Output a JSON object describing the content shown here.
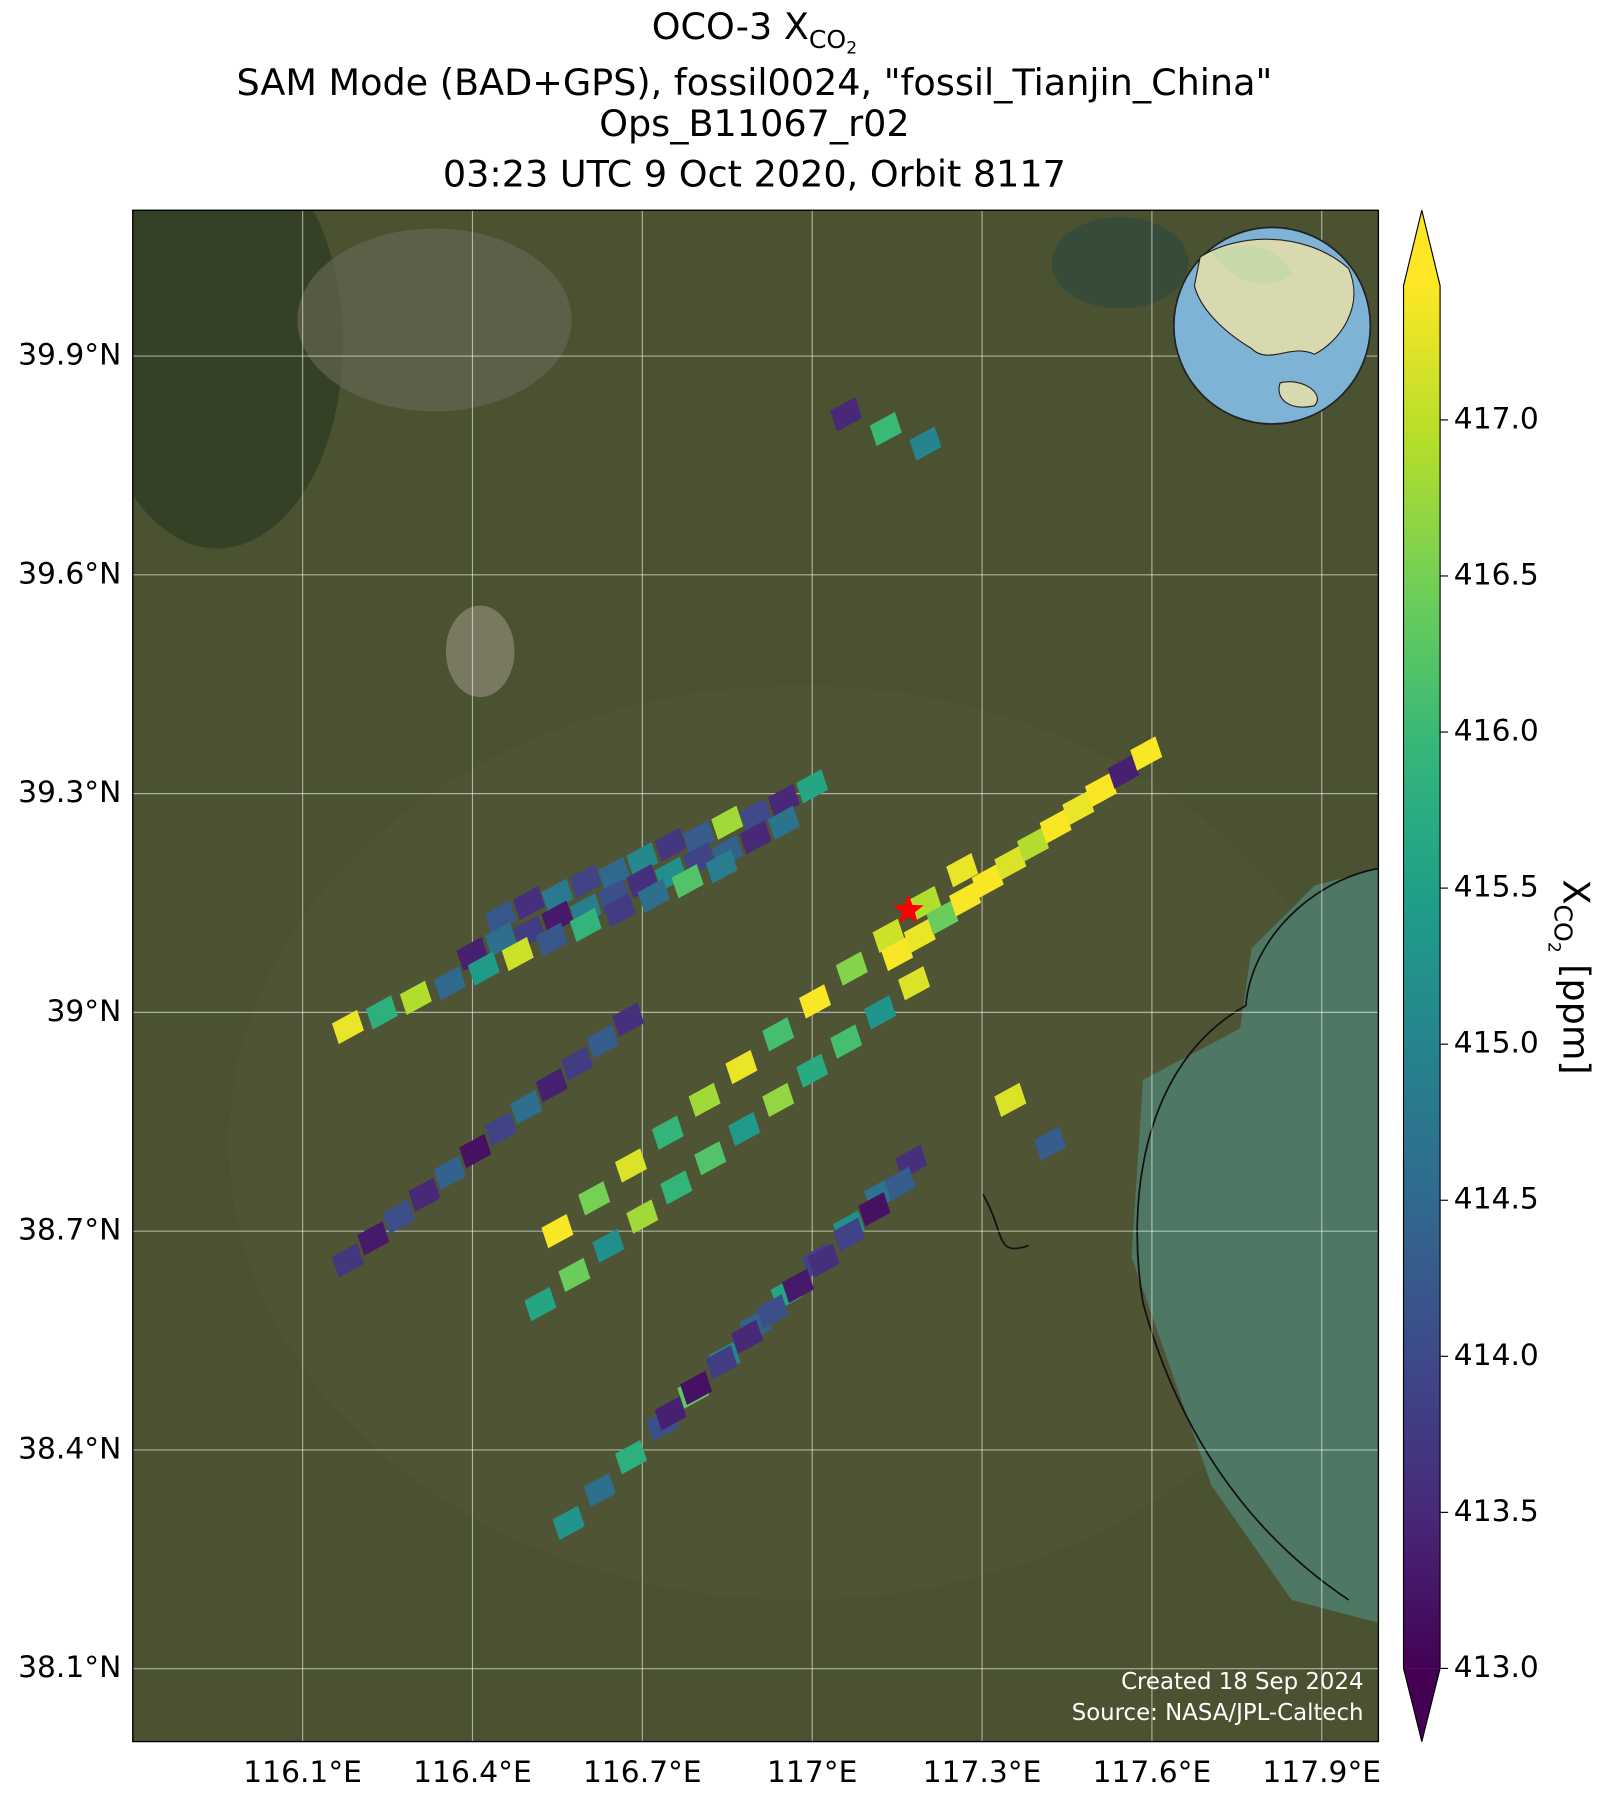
{
  "chart_data": {
    "type": "scatter",
    "title_prefix": "OCO-3 ",
    "species": {
      "base": "X",
      "sub": "CO",
      "subsub": "2"
    },
    "subtitle_lines": [
      "SAM Mode (BAD+GPS), fossil0024, \"fossil_Tianjin_China\"",
      "Ops_B11067_r02",
      "03:23 UTC 9 Oct 2020, Orbit 8117"
    ],
    "colorbar_unit": "[ppm]",
    "credits": [
      "Created 18 Sep 2024",
      "Source: NASA/JPL-Caltech"
    ],
    "colormap": "viridis",
    "clim": [
      413,
      417.43
    ],
    "colorbar_ticks": [
      {
        "value": 413,
        "label": "413.0"
      },
      413.5,
      {
        "value": 414,
        "label": "414.0"
      },
      414.5,
      {
        "value": 415,
        "label": "415.0"
      },
      415.5,
      {
        "value": 416,
        "label": "416.0"
      },
      416.5,
      {
        "value": 417,
        "label": "417.0"
      }
    ],
    "xlim": [
      115.8,
      118.0
    ],
    "ylim": [
      38.0,
      40.1
    ],
    "xticks": [
      {
        "value": 116.1,
        "label": "116.1°E"
      },
      {
        "value": 116.4,
        "label": "116.4°E"
      },
      {
        "value": 116.7,
        "label": "116.7°E"
      },
      {
        "value": 117,
        "label": "117°E"
      },
      {
        "value": 117.3,
        "label": "117.3°E"
      },
      {
        "value": 117.6,
        "label": "117.6°E"
      },
      {
        "value": 117.9,
        "label": "117.9°E"
      }
    ],
    "yticks": [
      {
        "value": 38.1,
        "label": "38.1°N"
      },
      {
        "value": 38.4,
        "label": "38.4°N"
      },
      {
        "value": 38.7,
        "label": "38.7°N"
      },
      {
        "value": 39,
        "label": "39°N"
      },
      {
        "value": 39.3,
        "label": "39.3°N"
      },
      {
        "value": 39.6,
        "label": "39.6°N"
      },
      {
        "value": 39.9,
        "label": "39.9°N"
      }
    ],
    "grid": true,
    "target": {
      "x": 117.17,
      "y": 39.14,
      "color": "#ff0000"
    },
    "x": [
      116.45,
      116.5,
      116.55,
      116.6,
      116.65,
      116.7,
      116.75,
      116.8,
      116.85,
      116.9,
      116.95,
      117.0,
      116.4,
      116.45,
      116.5,
      116.55,
      116.6,
      116.65,
      116.7,
      116.75,
      116.8,
      116.85,
      116.9,
      116.95,
      116.18,
      116.24,
      116.3,
      116.36,
      116.42,
      116.48,
      116.54,
      116.6,
      116.66,
      116.72,
      116.78,
      116.84,
      116.55,
      116.615,
      116.68,
      116.745,
      116.81,
      116.875,
      116.94,
      117.005,
      117.07,
      117.135,
      117.2,
      117.265,
      117.15,
      117.19,
      117.23,
      117.27,
      117.31,
      117.35,
      117.39,
      117.43,
      117.47,
      117.51,
      117.55,
      117.59,
      116.18,
      116.225,
      116.27,
      116.315,
      116.36,
      116.405,
      116.45,
      116.495,
      116.54,
      116.585,
      116.63,
      116.675,
      116.52,
      116.58,
      116.64,
      116.7,
      116.76,
      116.82,
      116.88,
      116.94,
      117.0,
      117.06,
      117.12,
      117.18,
      116.57,
      116.625,
      116.68,
      116.735,
      116.79,
      116.845,
      116.9,
      116.955,
      117.01,
      117.065,
      117.12,
      117.175,
      116.75,
      116.795,
      116.84,
      116.885,
      116.93,
      116.975,
      117.02,
      117.065,
      117.11,
      117.155,
      117.06,
      117.13,
      117.2,
      117.42,
      117.35
    ],
    "y": [
      39.13,
      39.15,
      39.16,
      39.18,
      39.19,
      39.21,
      39.23,
      39.24,
      39.26,
      39.27,
      39.29,
      39.31,
      39.08,
      39.1,
      39.11,
      39.13,
      39.14,
      39.16,
      39.18,
      39.19,
      39.21,
      39.22,
      39.24,
      39.26,
      38.98,
      39.0,
      39.02,
      39.04,
      39.06,
      39.08,
      39.1,
      39.12,
      39.14,
      39.16,
      39.18,
      39.2,
      38.7,
      38.745,
      38.79,
      38.835,
      38.88,
      38.925,
      38.97,
      39.015,
      39.06,
      39.105,
      39.15,
      39.195,
      39.08,
      39.105,
      39.13,
      39.155,
      39.18,
      39.205,
      39.23,
      39.255,
      39.28,
      39.305,
      39.33,
      39.355,
      38.66,
      38.69,
      38.72,
      38.75,
      38.78,
      38.81,
      38.84,
      38.87,
      38.9,
      38.93,
      38.96,
      38.99,
      38.6,
      38.64,
      38.68,
      38.72,
      38.76,
      38.8,
      38.84,
      38.88,
      38.92,
      38.96,
      39.0,
      39.04,
      38.3,
      38.345,
      38.39,
      38.435,
      38.48,
      38.525,
      38.57,
      38.615,
      38.66,
      38.705,
      38.75,
      38.795,
      38.45,
      38.485,
      38.52,
      38.555,
      38.59,
      38.625,
      38.66,
      38.695,
      38.73,
      38.765,
      39.82,
      39.8,
      39.78,
      38.82,
      38.88
    ],
    "values": [
      414.2,
      413.6,
      414.8,
      413.9,
      414.5,
      415.1,
      413.7,
      414.3,
      416.8,
      414.0,
      413.5,
      415.6,
      413.4,
      414.6,
      413.8,
      413.3,
      414.9,
      414.1,
      413.6,
      415.2,
      413.9,
      414.4,
      413.5,
      414.7,
      417.3,
      415.8,
      416.9,
      414.5,
      415.4,
      417.1,
      414.2,
      415.9,
      413.8,
      414.6,
      416.2,
      414.9,
      417.4,
      416.5,
      417.2,
      415.9,
      416.8,
      417.3,
      416.1,
      417.4,
      416.6,
      417.1,
      416.9,
      417.3,
      417.4,
      417.3,
      416.4,
      417.4,
      417.4,
      417.2,
      416.9,
      417.4,
      417.3,
      417.4,
      413.4,
      417.4,
      413.7,
      413.3,
      414.1,
      413.5,
      414.4,
      413.2,
      413.9,
      414.6,
      413.4,
      413.8,
      414.3,
      413.6,
      415.6,
      416.4,
      415.2,
      416.8,
      415.9,
      416.2,
      415.4,
      416.7,
      415.7,
      416.1,
      415.3,
      417.2,
      415.3,
      414.6,
      415.8,
      414.1,
      416.3,
      415.0,
      414.4,
      415.6,
      413.9,
      415.2,
      414.7,
      413.6,
      413.4,
      413.2,
      413.8,
      413.5,
      414.1,
      413.3,
      413.6,
      413.9,
      413.2,
      414.3,
      413.5,
      416.0,
      415.0,
      414.3,
      417.2
    ]
  }
}
